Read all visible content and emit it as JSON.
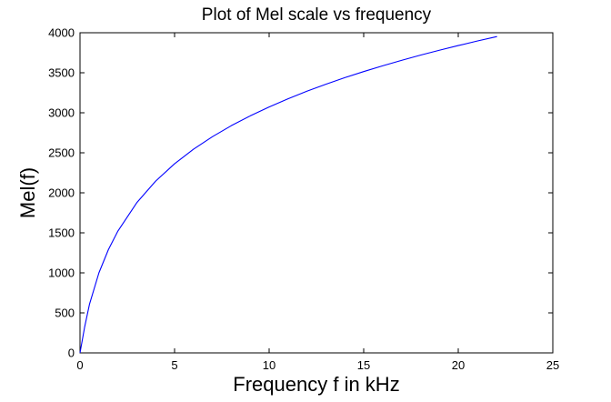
{
  "chart_data": {
    "type": "line",
    "title": "Plot of Mel scale vs frequency",
    "xlabel": "Frequency f in kHz",
    "ylabel": "Mel(f)",
    "xlim": [
      0,
      25
    ],
    "ylim": [
      0,
      4000
    ],
    "x_ticks": [
      "0",
      "5",
      "10",
      "15",
      "20",
      "25"
    ],
    "y_ticks": [
      "0",
      "500",
      "1000",
      "1500",
      "2000",
      "2500",
      "3000",
      "3500",
      "4000"
    ],
    "grid": false,
    "legend": "none",
    "series": [
      {
        "color": "#0000ff",
        "x": [
          0,
          0.25,
          0.5,
          1,
          1.5,
          2,
          3,
          4,
          5,
          6,
          7,
          8,
          9,
          10,
          11,
          12,
          13,
          14,
          15,
          16,
          17,
          18,
          19,
          20,
          21,
          22.05
        ],
        "y": [
          0,
          330,
          607,
          1000,
          1290,
          1521,
          1876,
          2146,
          2363,
          2545,
          2701,
          2839,
          2961,
          3073,
          3175,
          3270,
          3357,
          3439,
          3515,
          3587,
          3655,
          3720,
          3781,
          3840,
          3896,
          3952
        ]
      }
    ]
  }
}
